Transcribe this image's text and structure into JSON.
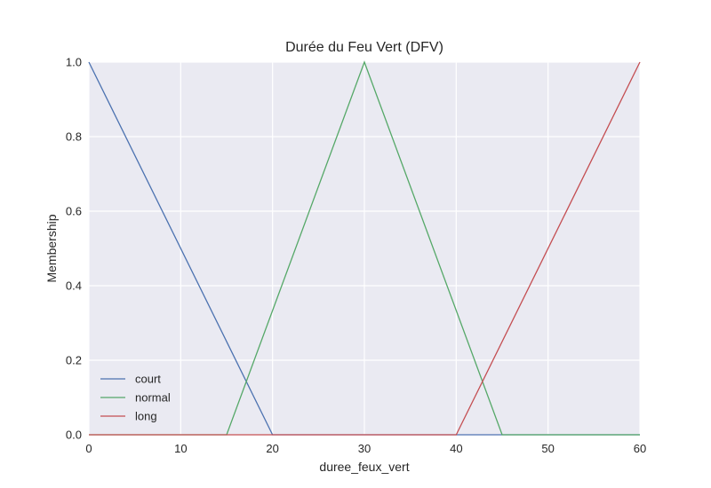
{
  "chart_data": {
    "type": "line",
    "title": "Durée du Feu Vert (DFV)",
    "xlabel": "duree_feux_vert",
    "ylabel": "Membership",
    "xlim": [
      0,
      60
    ],
    "ylim": [
      0,
      1
    ],
    "x_ticks": [
      0,
      10,
      20,
      30,
      40,
      50,
      60
    ],
    "x_tick_labels": [
      "0",
      "10",
      "20",
      "30",
      "40",
      "50",
      "60"
    ],
    "y_ticks": [
      0,
      0.2,
      0.4,
      0.6,
      0.8,
      1.0
    ],
    "y_tick_labels": [
      "0.0",
      "0.2",
      "0.4",
      "0.6",
      "0.8",
      "1.0"
    ],
    "grid": true,
    "legend_position": "lower-left",
    "series": [
      {
        "name": "court",
        "color": "#4c72b0",
        "x": [
          0,
          20,
          60
        ],
        "y": [
          1,
          0,
          0
        ]
      },
      {
        "name": "normal",
        "color": "#55a868",
        "x": [
          0,
          15,
          30,
          45,
          60
        ],
        "y": [
          0,
          0,
          1,
          0,
          0
        ]
      },
      {
        "name": "long",
        "color": "#c44e52",
        "x": [
          0,
          40,
          60
        ],
        "y": [
          0,
          0,
          1
        ]
      }
    ]
  }
}
